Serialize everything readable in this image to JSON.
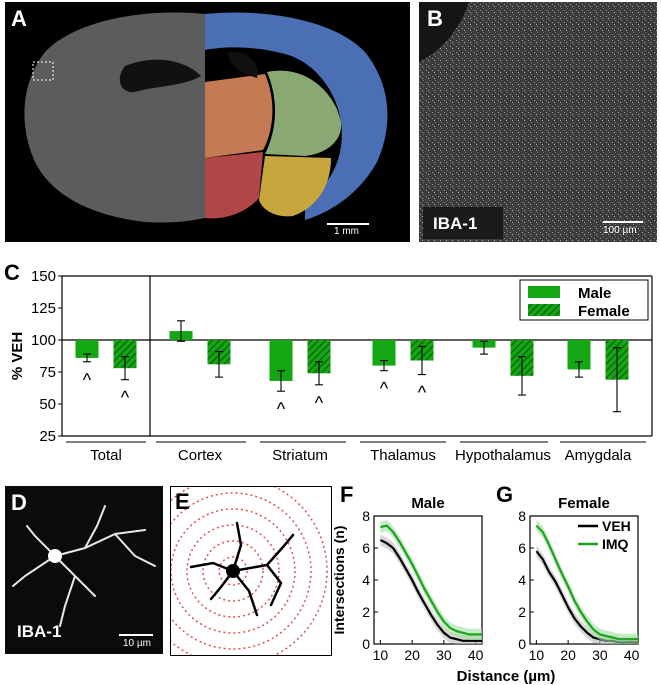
{
  "panels": {
    "a": {
      "letter": "A",
      "scale": "1 mm"
    },
    "b": {
      "letter": "B",
      "tag": "IBA-1",
      "scale": "100 µm"
    },
    "c": {
      "letter": "C"
    },
    "d": {
      "letter": "D",
      "tag": "IBA-1",
      "scale": "10 µm"
    },
    "e": {
      "letter": "E"
    },
    "f": {
      "letter": "F"
    },
    "g": {
      "letter": "G"
    }
  },
  "colors": {
    "green": "#13a813",
    "hatch": "#0e5e0e",
    "veh": "#000000",
    "imq": "#1fa31f",
    "region_blue": "#4a6fb5",
    "region_orange": "#c47a52",
    "region_green": "#8aa872",
    "region_red": "#b04646",
    "region_yellow": "#c8a63e",
    "sholl_ring": "#d9534f"
  },
  "chart_data": [
    {
      "type": "bar",
      "title": "",
      "ylabel": "% VEH",
      "xlabel": "",
      "ylim": [
        25,
        150
      ],
      "yticks": [
        25,
        50,
        75,
        100,
        125,
        150
      ],
      "baseline": 100,
      "categories": [
        "Total",
        "Cortex",
        "Striatum",
        "Thalamus",
        "Hypothalamus",
        "Amygdala"
      ],
      "legend_position": "top-right",
      "series": [
        {
          "name": "Male",
          "pattern": "solid",
          "values": [
            86,
            107,
            68,
            80,
            94,
            77
          ],
          "errors": [
            3,
            8,
            8,
            4,
            5,
            6
          ]
        },
        {
          "name": "Female",
          "pattern": "hatched",
          "values": [
            78,
            81,
            74,
            84,
            72,
            69
          ],
          "errors": [
            9,
            10,
            9,
            11,
            15,
            25
          ]
        }
      ],
      "annotations": [
        {
          "symbol": "^",
          "category": "Total",
          "series": "Male"
        },
        {
          "symbol": "^",
          "category": "Total",
          "series": "Female"
        },
        {
          "symbol": "^",
          "category": "Striatum",
          "series": "Male"
        },
        {
          "symbol": "^",
          "category": "Striatum",
          "series": "Female"
        },
        {
          "symbol": "^",
          "category": "Thalamus",
          "series": "Male"
        },
        {
          "symbol": "^",
          "category": "Thalamus",
          "series": "Female"
        }
      ]
    },
    {
      "type": "line",
      "title": "Male",
      "xlabel": "",
      "ylabel": "Intersections (n)",
      "xlim": [
        8,
        42
      ],
      "ylim": [
        0,
        8
      ],
      "xticks": [
        10,
        20,
        30,
        40
      ],
      "yticks": [
        0,
        2,
        4,
        6,
        8
      ],
      "series": [
        {
          "name": "VEH",
          "x": [
            10,
            12,
            14,
            16,
            18,
            20,
            22,
            24,
            26,
            28,
            30,
            32,
            34,
            36,
            38,
            40,
            42
          ],
          "y": [
            6.5,
            6.3,
            6.0,
            5.4,
            4.7,
            4.0,
            3.2,
            2.5,
            1.8,
            1.2,
            0.7,
            0.4,
            0.3,
            0.2,
            0.2,
            0.2,
            0.2
          ]
        },
        {
          "name": "IMQ",
          "x": [
            10,
            12,
            14,
            16,
            18,
            20,
            22,
            24,
            26,
            28,
            30,
            32,
            34,
            36,
            38,
            40,
            42
          ],
          "y": [
            7.3,
            7.4,
            7.0,
            6.4,
            5.7,
            5.0,
            4.2,
            3.4,
            2.7,
            2.0,
            1.4,
            1.0,
            0.8,
            0.7,
            0.6,
            0.6,
            0.6
          ]
        }
      ]
    },
    {
      "type": "line",
      "title": "Female",
      "xlabel": "",
      "ylabel": "",
      "xlim": [
        8,
        42
      ],
      "ylim": [
        0,
        8
      ],
      "xticks": [
        10,
        20,
        30,
        40
      ],
      "yticks": [
        0,
        2,
        4,
        6,
        8
      ],
      "legend_position": "top-right",
      "series": [
        {
          "name": "VEH",
          "x": [
            10,
            12,
            14,
            16,
            18,
            20,
            22,
            24,
            26,
            28,
            30,
            32,
            34,
            36,
            38,
            40,
            42
          ],
          "y": [
            5.8,
            5.3,
            4.5,
            3.9,
            3.1,
            2.3,
            1.6,
            1.1,
            0.7,
            0.4,
            0.3,
            0.2,
            0.2,
            0.1,
            0.1,
            0.1,
            0.1
          ]
        },
        {
          "name": "IMQ",
          "x": [
            10,
            12,
            14,
            16,
            18,
            20,
            22,
            24,
            26,
            28,
            30,
            32,
            34,
            36,
            38,
            40,
            42
          ],
          "y": [
            7.4,
            7.0,
            6.2,
            5.3,
            4.4,
            3.6,
            2.7,
            2.0,
            1.4,
            0.9,
            0.6,
            0.5,
            0.4,
            0.3,
            0.3,
            0.3,
            0.3
          ]
        }
      ]
    }
  ],
  "shared_xlabel": "Distance (µm)"
}
